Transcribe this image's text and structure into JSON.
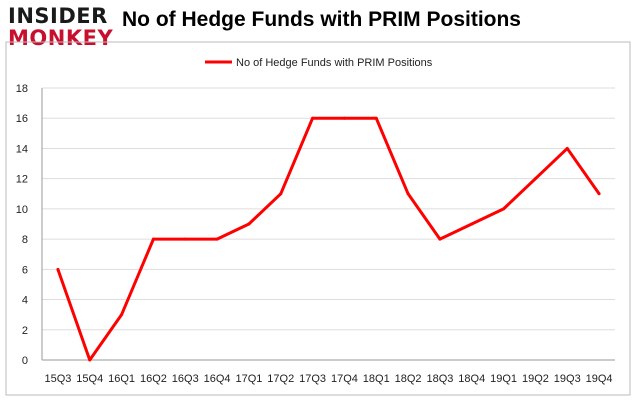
{
  "logo": {
    "line1": "INSIDER",
    "line2": "MONKEY"
  },
  "chart_data": {
    "type": "line",
    "title": "No of Hedge Funds with PRIM Positions",
    "xlabel": "",
    "ylabel": "",
    "categories": [
      "15Q3",
      "15Q4",
      "16Q1",
      "16Q2",
      "16Q3",
      "16Q4",
      "17Q1",
      "17Q2",
      "17Q3",
      "17Q4",
      "18Q1",
      "18Q2",
      "18Q3",
      "18Q4",
      "19Q1",
      "19Q2",
      "19Q3",
      "19Q4"
    ],
    "series": [
      {
        "name": "No of Hedge Funds with PRIM Positions",
        "values": [
          6,
          0,
          3,
          8,
          8,
          8,
          9,
          11,
          16,
          16,
          16,
          11,
          8,
          9,
          10,
          12,
          14,
          11
        ]
      }
    ],
    "ylim": [
      0,
      18
    ],
    "yticks": [
      0,
      2,
      4,
      6,
      8,
      10,
      12,
      14,
      16,
      18
    ],
    "grid": true,
    "legend_position": "top-center",
    "colors": {
      "line": "#ff0000",
      "grid": "#dddddd",
      "axis": "#999999"
    }
  }
}
